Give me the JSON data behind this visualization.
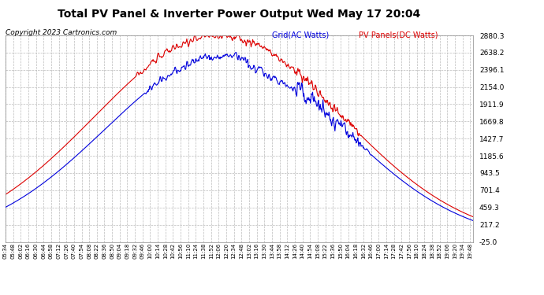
{
  "title": "Total PV Panel & Inverter Power Output Wed May 17 20:04",
  "copyright": "Copyright 2023 Cartronics.com",
  "legend_blue": "Grid(AC Watts)",
  "legend_red": "PV Panels(DC Watts)",
  "y_min": -25.0,
  "y_max": 2880.3,
  "y_ticks": [
    -25.0,
    217.2,
    459.3,
    701.4,
    943.5,
    1185.6,
    1427.7,
    1669.8,
    1911.9,
    2154.0,
    2396.1,
    2638.2,
    2880.3
  ],
  "bg_color": "#ffffff",
  "grid_color": "#bbbbbb",
  "blue_color": "#0000dd",
  "red_color": "#dd0000",
  "x_start_hour": 5,
  "x_start_min": 34,
  "x_end_hour": 19,
  "x_end_min": 54,
  "tick_interval_min": 14,
  "title_fontsize": 10,
  "copyright_fontsize": 6.5,
  "legend_fontsize": 7,
  "ytick_fontsize": 6.5,
  "xtick_fontsize": 5.0
}
